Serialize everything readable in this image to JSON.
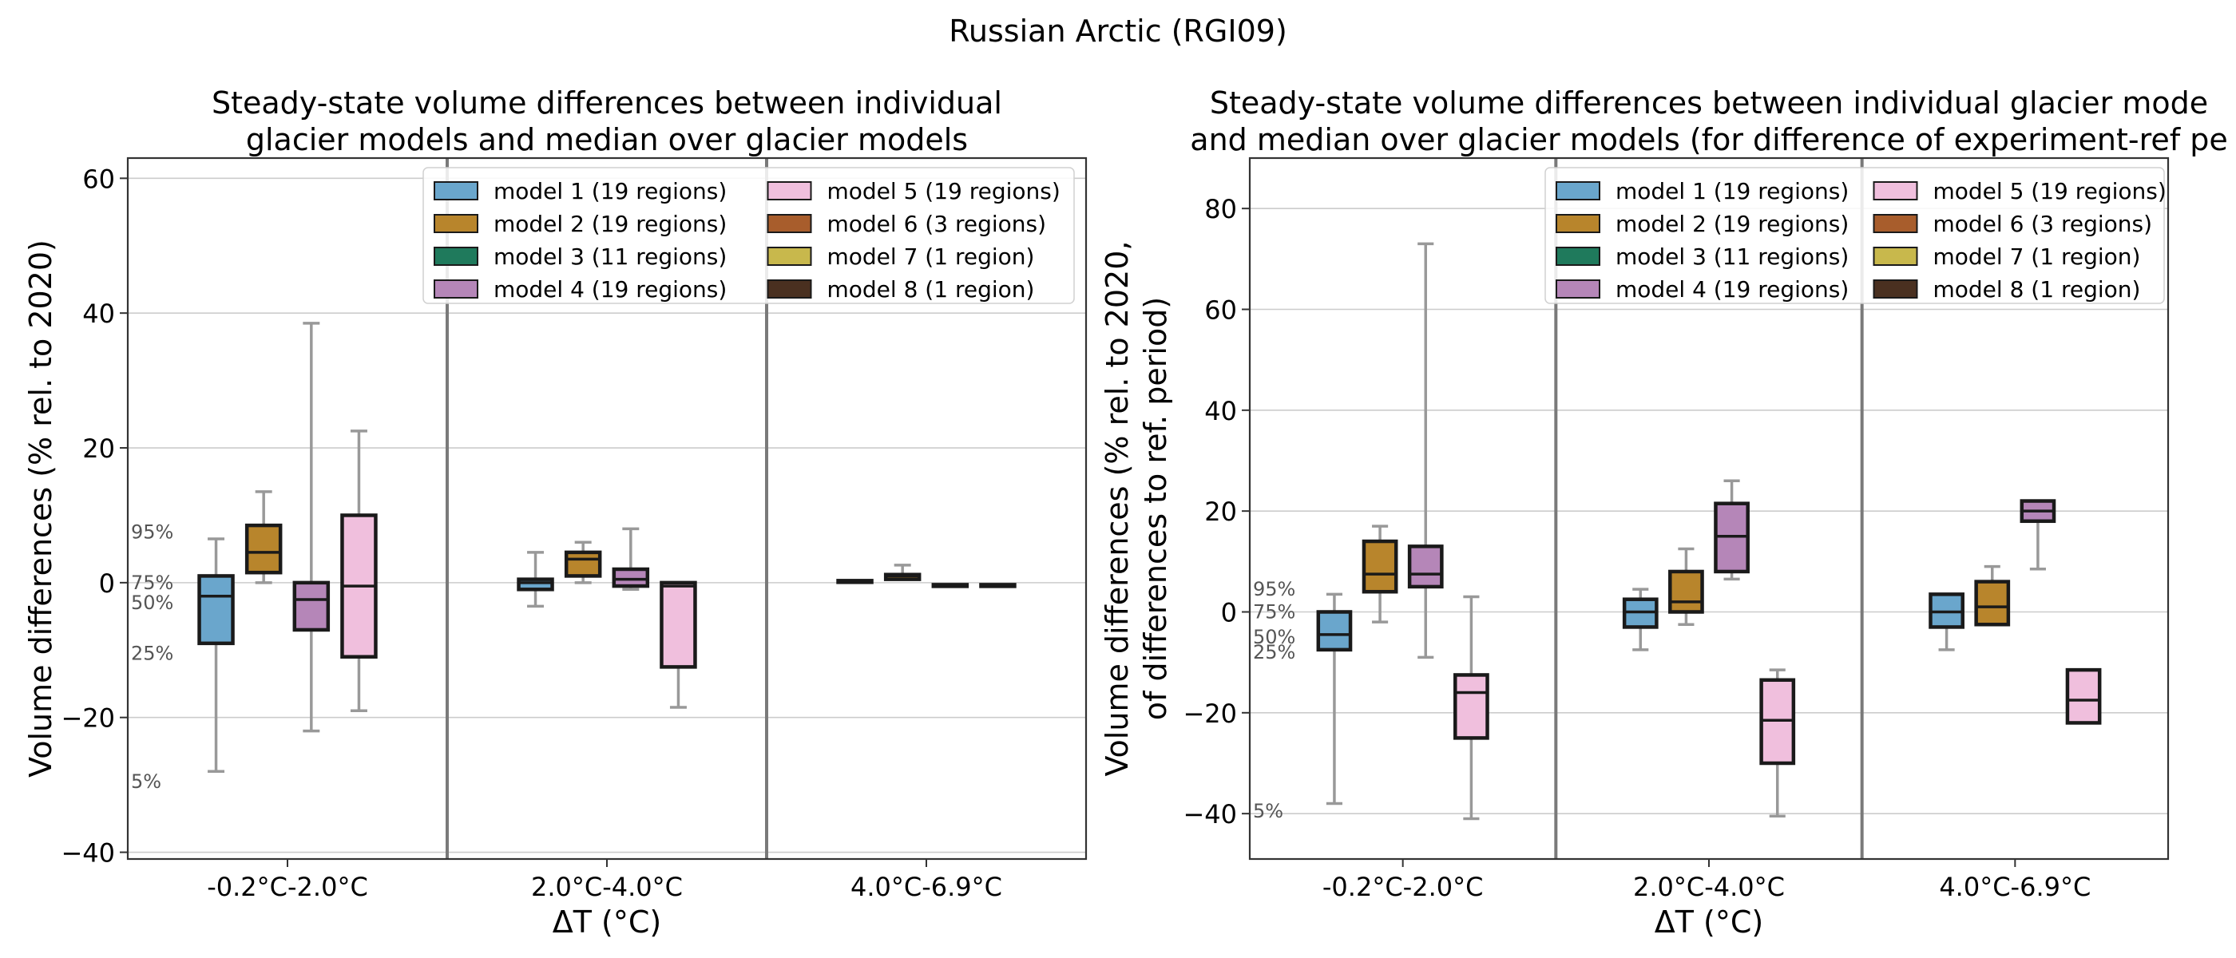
{
  "suptitle": "Russian Arctic (RGI09)",
  "legend_entries": [
    {
      "name": "model 1 (19 regions)",
      "color": "#6aa6cc"
    },
    {
      "name": "model 2 (19 regions)",
      "color": "#b8852c"
    },
    {
      "name": "model 3 (11 regions)",
      "color": "#1f7a5c"
    },
    {
      "name": "model 4 (19 regions)",
      "color": "#b586b8"
    },
    {
      "name": "model 5 (19 regions)",
      "color": "#f0bfdd"
    },
    {
      "name": "model 6 (3 regions)",
      "color": "#a85d2c"
    },
    {
      "name": "model 7 (1 region)",
      "color": "#c8b84c"
    },
    {
      "name": "model 8 (1 region)",
      "color": "#4a3020"
    }
  ],
  "chart_data": [
    {
      "type": "box",
      "title_lines": [
        "Steady-state volume differences between individual",
        "glacier models and median over glacier models"
      ],
      "xlabel": "ΔT (°C)",
      "ylabel_lines": [
        "Volume differences (% rel. to 2020)"
      ],
      "ylim": [
        -41,
        63
      ],
      "yticks": [
        -40,
        -20,
        0,
        20,
        40,
        60
      ],
      "grid": true,
      "legend_location": "upper right",
      "categories": [
        "-0.2°C-2.0°C",
        "2.0°C-4.0°C",
        "4.0°C-6.9°C"
      ],
      "percentile_annotations": [
        {
          "label": "95%",
          "value": 7.5
        },
        {
          "label": "75%",
          "value": 0
        },
        {
          "label": "50%",
          "value": -3
        },
        {
          "label": "25%",
          "value": -10.5
        },
        {
          "label": "5%",
          "value": -29.5
        }
      ],
      "boxes": [
        {
          "category": 0,
          "model": 0,
          "p5": -28,
          "q1": -9,
          "median": -2,
          "q3": 1,
          "p95": 6.5
        },
        {
          "category": 0,
          "model": 1,
          "p5": 0,
          "q1": 1.5,
          "median": 4.5,
          "q3": 8.5,
          "p95": 13.5
        },
        {
          "category": 0,
          "model": 3,
          "p5": -22,
          "q1": -7,
          "median": -2.5,
          "q3": 0,
          "p95": 38.5
        },
        {
          "category": 0,
          "model": 4,
          "p5": -19,
          "q1": -11,
          "median": -0.5,
          "q3": 10,
          "p95": 22.5
        },
        {
          "category": 1,
          "model": 0,
          "p5": -3.5,
          "q1": -1,
          "median": 0,
          "q3": 0.5,
          "p95": 4.5
        },
        {
          "category": 1,
          "model": 1,
          "p5": 0,
          "q1": 1,
          "median": 3.5,
          "q3": 4.5,
          "p95": 6
        },
        {
          "category": 1,
          "model": 3,
          "p5": -1,
          "q1": -0.5,
          "median": 0.5,
          "q3": 2,
          "p95": 8
        },
        {
          "category": 1,
          "model": 4,
          "p5": -18.5,
          "q1": -12.5,
          "median": -0.5,
          "q3": 0,
          "p95": 0
        },
        {
          "category": 2,
          "model": 0,
          "p5": 0.3,
          "q1": 0.3,
          "median": 0.3,
          "q3": 0.3,
          "p95": 0.3
        },
        {
          "category": 2,
          "model": 1,
          "p5": 0.8,
          "q1": 0.5,
          "median": 1,
          "q3": 1.2,
          "p95": 2.6
        },
        {
          "category": 2,
          "model": 3,
          "p5": -0.3,
          "q1": -0.3,
          "median": -0.3,
          "q3": -0.3,
          "p95": -0.3
        },
        {
          "category": 2,
          "model": 4,
          "p5": -0.3,
          "q1": -0.3,
          "median": -0.3,
          "q3": -0.3,
          "p95": -0.3
        }
      ]
    },
    {
      "type": "box",
      "title_lines": [
        "Steady-state volume differences between individual glacier mode",
        "and median over glacier models (for difference of experiment-ref pe"
      ],
      "xlabel": "ΔT (°C)",
      "ylabel_lines": [
        "Volume differences (% rel. to 2020,",
        "of differences to ref. period)"
      ],
      "ylim": [
        -49,
        90
      ],
      "yticks": [
        -40,
        -20,
        0,
        20,
        40,
        60,
        80
      ],
      "grid": true,
      "legend_location": "upper right",
      "categories": [
        "-0.2°C-2.0°C",
        "2.0°C-4.0°C",
        "4.0°C-6.9°C"
      ],
      "percentile_annotations": [
        {
          "label": "95%",
          "value": 4.5
        },
        {
          "label": "75%",
          "value": 0
        },
        {
          "label": "50%",
          "value": -5
        },
        {
          "label": "25%",
          "value": -8
        },
        {
          "label": "5%",
          "value": -39.5
        }
      ],
      "boxes": [
        {
          "category": 0,
          "model": 0,
          "p5": -38,
          "q1": -7.5,
          "median": -4.5,
          "q3": 0,
          "p95": 3.5
        },
        {
          "category": 0,
          "model": 1,
          "p5": -2,
          "q1": 4,
          "median": 7.5,
          "q3": 14,
          "p95": 17
        },
        {
          "category": 0,
          "model": 3,
          "p5": -9,
          "q1": 5,
          "median": 7.5,
          "q3": 13,
          "p95": 73
        },
        {
          "category": 0,
          "model": 4,
          "p5": -41,
          "q1": -25,
          "median": -16,
          "q3": -12.5,
          "p95": 3
        },
        {
          "category": 1,
          "model": 0,
          "p5": -7.5,
          "q1": -3,
          "median": 0,
          "q3": 2.5,
          "p95": 4.5
        },
        {
          "category": 1,
          "model": 1,
          "p5": -2.5,
          "q1": 0,
          "median": 2,
          "q3": 8,
          "p95": 12.5
        },
        {
          "category": 1,
          "model": 3,
          "p5": 6.5,
          "q1": 8,
          "median": 15,
          "q3": 21.5,
          "p95": 26
        },
        {
          "category": 1,
          "model": 4,
          "p5": -40.5,
          "q1": -30,
          "median": -21.5,
          "q3": -13.5,
          "p95": -11.5
        },
        {
          "category": 2,
          "model": 0,
          "p5": -7.5,
          "q1": -3,
          "median": 0,
          "q3": 3.5,
          "p95": 3.5
        },
        {
          "category": 2,
          "model": 1,
          "p5": -2.5,
          "q1": -2.5,
          "median": 1,
          "q3": 6,
          "p95": 9
        },
        {
          "category": 2,
          "model": 3,
          "p5": 8.5,
          "q1": 18,
          "median": 20,
          "q3": 22,
          "p95": 22
        },
        {
          "category": 2,
          "model": 4,
          "p5": -22,
          "q1": -22,
          "median": -17.5,
          "q3": -11.5,
          "p95": -11.5
        }
      ]
    }
  ]
}
